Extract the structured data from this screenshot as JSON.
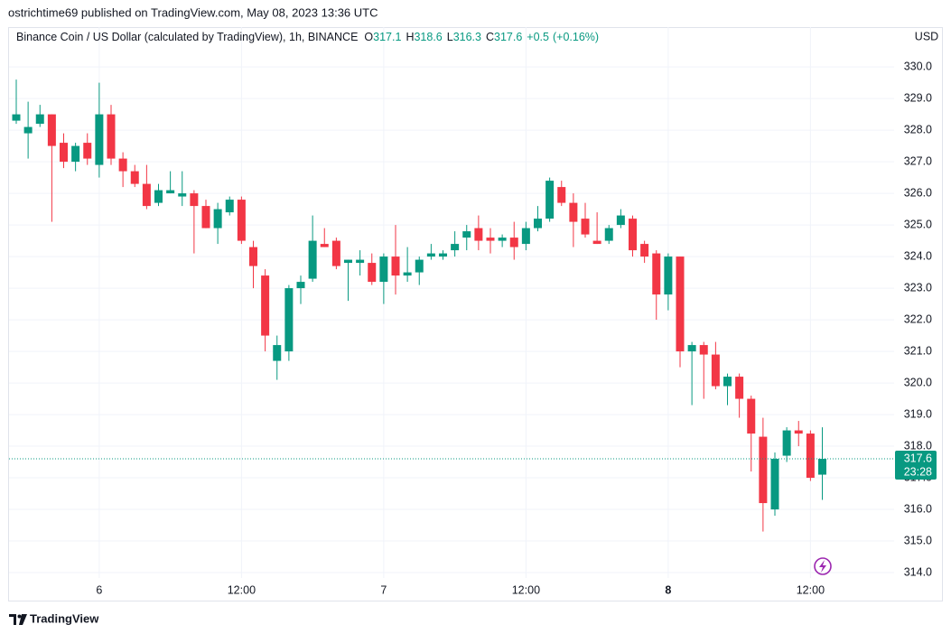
{
  "header": {
    "published": "ostrichtime69 published on TradingView.com, May 08, 2023 13:36 UTC"
  },
  "chart_data": {
    "type": "candlestick",
    "title": "Binance Coin / US Dollar (calculated by TradingView), 1h, BINANCE",
    "ohlc_readout": [
      {
        "label": "O",
        "value": 317.1
      },
      {
        "label": "H",
        "value": 318.6
      },
      {
        "label": "L",
        "value": 316.3
      },
      {
        "label": "C",
        "value": 317.6
      }
    ],
    "change": {
      "value": 0.5,
      "label": "+0.5"
    },
    "change_percent": {
      "value": 0.16,
      "label": "(+0.16%)"
    },
    "axis_currency": "USD",
    "x": [
      null,
      null,
      null,
      null,
      null,
      null,
      null,
      "6",
      null,
      null,
      null,
      null,
      null,
      null,
      null,
      null,
      null,
      null,
      null,
      "12:00",
      null,
      null,
      null,
      null,
      null,
      null,
      null,
      null,
      null,
      null,
      null,
      "7",
      null,
      null,
      null,
      null,
      null,
      null,
      null,
      null,
      null,
      null,
      null,
      "12:00",
      null,
      null,
      null,
      null,
      null,
      null,
      null,
      null,
      null,
      null,
      null,
      "8",
      null,
      null,
      null,
      null,
      null,
      null,
      null,
      null,
      null,
      null,
      null,
      "12:00",
      null
    ],
    "open": [
      328.3,
      327.9,
      328.2,
      328.5,
      327.6,
      327.0,
      327.6,
      326.9,
      328.5,
      327.1,
      326.7,
      326.3,
      325.7,
      326.0,
      325.9,
      326.0,
      325.6,
      324.9,
      325.4,
      325.8,
      324.3,
      323.4,
      320.7,
      321.0,
      323.0,
      323.3,
      324.4,
      324.5,
      323.8,
      323.8,
      323.8,
      323.2,
      324.0,
      323.4,
      323.5,
      324.0,
      324.0,
      324.2,
      324.6,
      324.9,
      324.6,
      324.5,
      324.6,
      324.4,
      324.9,
      325.2,
      326.2,
      325.7,
      325.2,
      324.5,
      324.5,
      325.0,
      325.2,
      324.4,
      324.1,
      322.8,
      324.0,
      321.0,
      321.2,
      320.9,
      319.9,
      320.2,
      319.5,
      318.3,
      316.0,
      317.7,
      318.5,
      318.4,
      317.1
    ],
    "high": [
      329.6,
      328.9,
      328.8,
      328.5,
      327.9,
      327.6,
      327.9,
      329.5,
      328.8,
      327.3,
      326.9,
      326.9,
      326.3,
      326.7,
      326.7,
      326.1,
      325.8,
      325.7,
      325.9,
      325.9,
      324.5,
      323.6,
      321.5,
      323.1,
      323.4,
      325.3,
      324.9,
      324.6,
      323.9,
      324.2,
      324.1,
      324.1,
      325.0,
      324.3,
      324.0,
      324.4,
      324.2,
      324.8,
      325.0,
      325.3,
      324.9,
      324.7,
      325.1,
      325.1,
      325.6,
      326.5,
      326.4,
      326.0,
      325.7,
      325.4,
      325.0,
      325.5,
      325.3,
      324.5,
      324.2,
      324.1,
      324.0,
      321.3,
      321.3,
      321.3,
      320.3,
      320.3,
      319.6,
      318.9,
      317.8,
      318.6,
      318.8,
      318.5,
      318.6
    ],
    "low": [
      328.2,
      327.1,
      328.1,
      325.1,
      326.8,
      326.7,
      326.9,
      326.5,
      326.9,
      326.2,
      326.2,
      325.5,
      325.6,
      326.0,
      325.6,
      324.1,
      324.9,
      324.4,
      325.3,
      324.4,
      323.0,
      321.0,
      320.1,
      320.7,
      322.5,
      323.2,
      324.3,
      323.6,
      322.6,
      323.4,
      323.1,
      322.5,
      322.8,
      323.2,
      323.1,
      323.9,
      323.9,
      324.0,
      324.2,
      324.2,
      324.1,
      324.3,
      323.9,
      324.2,
      324.8,
      325.1,
      325.6,
      324.3,
      324.6,
      324.4,
      324.4,
      324.9,
      324.0,
      323.8,
      322.0,
      322.3,
      320.5,
      319.3,
      319.5,
      319.8,
      319.3,
      318.9,
      317.2,
      315.3,
      315.8,
      317.5,
      318.0,
      316.9,
      316.3
    ],
    "close": [
      328.5,
      328.1,
      328.5,
      327.5,
      327.0,
      327.5,
      327.1,
      328.5,
      327.1,
      326.7,
      326.3,
      325.6,
      326.1,
      326.1,
      326.0,
      325.6,
      324.9,
      325.5,
      325.8,
      324.5,
      323.7,
      321.5,
      321.2,
      323.0,
      323.2,
      324.5,
      324.3,
      323.7,
      323.9,
      323.9,
      323.2,
      324.0,
      323.4,
      323.5,
      323.9,
      324.1,
      324.1,
      324.4,
      324.8,
      324.5,
      324.5,
      324.6,
      324.3,
      324.9,
      325.2,
      326.4,
      325.7,
      325.1,
      324.7,
      324.4,
      324.9,
      325.3,
      324.2,
      324.0,
      322.8,
      324.0,
      321.0,
      321.2,
      320.9,
      319.9,
      320.2,
      319.5,
      318.4,
      316.2,
      317.6,
      318.5,
      318.4,
      317.0,
      317.6
    ],
    "up_color": "#089981",
    "down_color": "#f23645",
    "ylim": [
      313.83,
      331.26
    ],
    "yticks": [
      {
        "value": 314,
        "label": "314.0"
      },
      {
        "value": 315,
        "label": "315.0"
      },
      {
        "value": 316,
        "label": "316.0"
      },
      {
        "value": 317,
        "label": "317.0"
      },
      {
        "value": 318,
        "label": "318.0"
      },
      {
        "value": 319,
        "label": "319.0"
      },
      {
        "value": 320,
        "label": "320.0"
      },
      {
        "value": 321,
        "label": "321.0"
      },
      {
        "value": 322,
        "label": "322.0"
      },
      {
        "value": 323,
        "label": "323.0"
      },
      {
        "value": 324,
        "label": "324.0"
      },
      {
        "value": 325,
        "label": "325.0"
      },
      {
        "value": 326,
        "label": "326.0"
      },
      {
        "value": 327,
        "label": "327.0"
      },
      {
        "value": 328,
        "label": "328.0"
      },
      {
        "value": 329,
        "label": "329.0"
      },
      {
        "value": 330,
        "label": "330.0"
      }
    ],
    "grid": true,
    "last_price": 317.6,
    "countdown": "23:28"
  },
  "footer": {
    "brand": "TradingView"
  }
}
